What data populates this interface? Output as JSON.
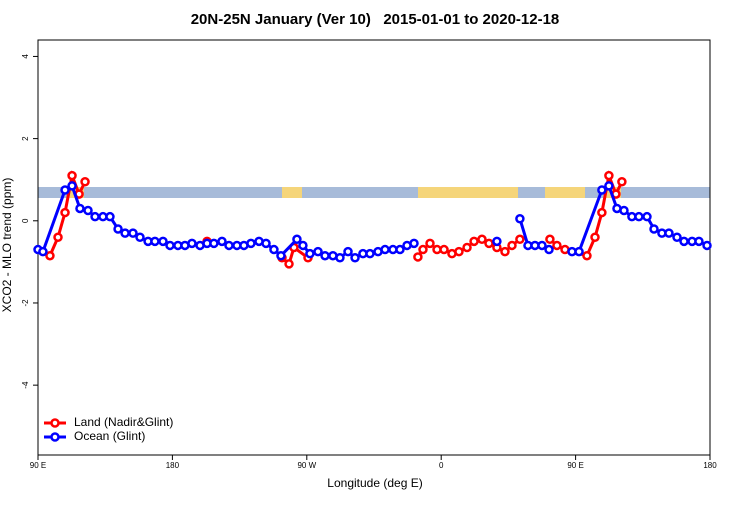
{
  "chart_data": {
    "type": "line",
    "title": "20N-25N January (Ver 10)   2015-01-01 to 2020-12-18",
    "xlabel": "Longitude (deg E)",
    "ylabel": "XCO2 - MLO trend (ppm)",
    "xlim": [
      90,
      540
    ],
    "ylim": [
      -5.7,
      4.4
    ],
    "xticks": [
      {
        "value": 90,
        "label": "90 E"
      },
      180,
      {
        "value": 270,
        "label": "90 W"
      },
      {
        "value": 360,
        "label": "0"
      },
      {
        "value": 450,
        "label": "90 E"
      },
      {
        "value": 540,
        "label": "180"
      }
    ],
    "yticks": [
      -4,
      -2,
      0,
      2,
      4
    ],
    "legend": "bottom-left",
    "series": [
      {
        "name": "Land (Nadir&Glint)",
        "color": "#ff0000",
        "x": [
          98,
          103.4,
          108.1,
          112.8,
          117.5,
          121.5,
          null,
          203.2,
          null,
          253.4,
          258.1,
          261.4,
          270.8,
          null,
          344.4,
          347.8,
          352.5,
          357.2,
          361.9,
          367.2,
          371.9,
          377.3,
          382,
          387.3,
          392,
          397.3,
          402.7,
          407.4,
          412.7,
          null,
          432.8,
          437.5,
          442.9,
          457.6,
          463,
          467.6,
          472.3,
          477,
          481
        ],
        "values": [
          -0.85,
          -0.4,
          0.2,
          1.1,
          0.65,
          0.95,
          null,
          -0.5,
          null,
          -0.9,
          -1.05,
          -0.65,
          -0.9,
          null,
          -0.88,
          -0.7,
          -0.55,
          -0.7,
          -0.7,
          -0.8,
          -0.75,
          -0.65,
          -0.5,
          -0.45,
          -0.55,
          -0.65,
          -0.75,
          -0.6,
          -0.45,
          null,
          -0.45,
          -0.6,
          -0.7,
          -0.85,
          -0.4,
          0.2,
          1.1,
          0.65,
          0.95
        ]
      },
      {
        "name": "Ocean (Glint)",
        "color": "#0000ff",
        "x": [
          90,
          93.3,
          108.1,
          112.8,
          118.1,
          123.5,
          128.2,
          133.5,
          138.2,
          143.6,
          148.3,
          153.6,
          158.3,
          163.7,
          168.3,
          173.7,
          178.4,
          183.7,
          188.4,
          193.1,
          198.5,
          203.2,
          207.8,
          213.2,
          217.9,
          223.2,
          227.9,
          232.6,
          238,
          242.7,
          248,
          252.7,
          263.4,
          267.4,
          272.1,
          277.5,
          282.2,
          287.5,
          292.2,
          297.6,
          302.3,
          307.6,
          312.3,
          317.7,
          322.4,
          327.7,
          332.4,
          337.1,
          341.8,
          null,
          397.3,
          null,
          412.7,
          418.1,
          422.8,
          427.5,
          432.2,
          null,
          447.6,
          452.3,
          467.6,
          472.3,
          477.7,
          482.4,
          487.7,
          492.4,
          497.8,
          502.5,
          507.8,
          512.5,
          517.9,
          522.6,
          528,
          532.6,
          538
        ],
        "values": [
          -0.7,
          -0.75,
          0.75,
          0.85,
          0.3,
          0.25,
          0.1,
          0.1,
          0.1,
          -0.2,
          -0.3,
          -0.3,
          -0.4,
          -0.5,
          -0.5,
          -0.5,
          -0.6,
          -0.6,
          -0.6,
          -0.55,
          -0.6,
          -0.55,
          -0.55,
          -0.5,
          -0.6,
          -0.6,
          -0.6,
          -0.55,
          -0.5,
          -0.55,
          -0.7,
          -0.85,
          -0.45,
          -0.6,
          -0.8,
          -0.75,
          -0.85,
          -0.85,
          -0.9,
          -0.75,
          -0.9,
          -0.8,
          -0.8,
          -0.75,
          -0.7,
          -0.7,
          -0.7,
          -0.6,
          -0.55,
          null,
          -0.5,
          null,
          0.05,
          -0.6,
          -0.6,
          -0.6,
          -0.7,
          null,
          -0.75,
          -0.75,
          0.75,
          0.85,
          0.3,
          0.25,
          0.1,
          0.1,
          0.1,
          -0.2,
          -0.3,
          -0.3,
          -0.4,
          -0.5,
          -0.5,
          -0.5,
          -0.6
        ]
      }
    ]
  }
}
